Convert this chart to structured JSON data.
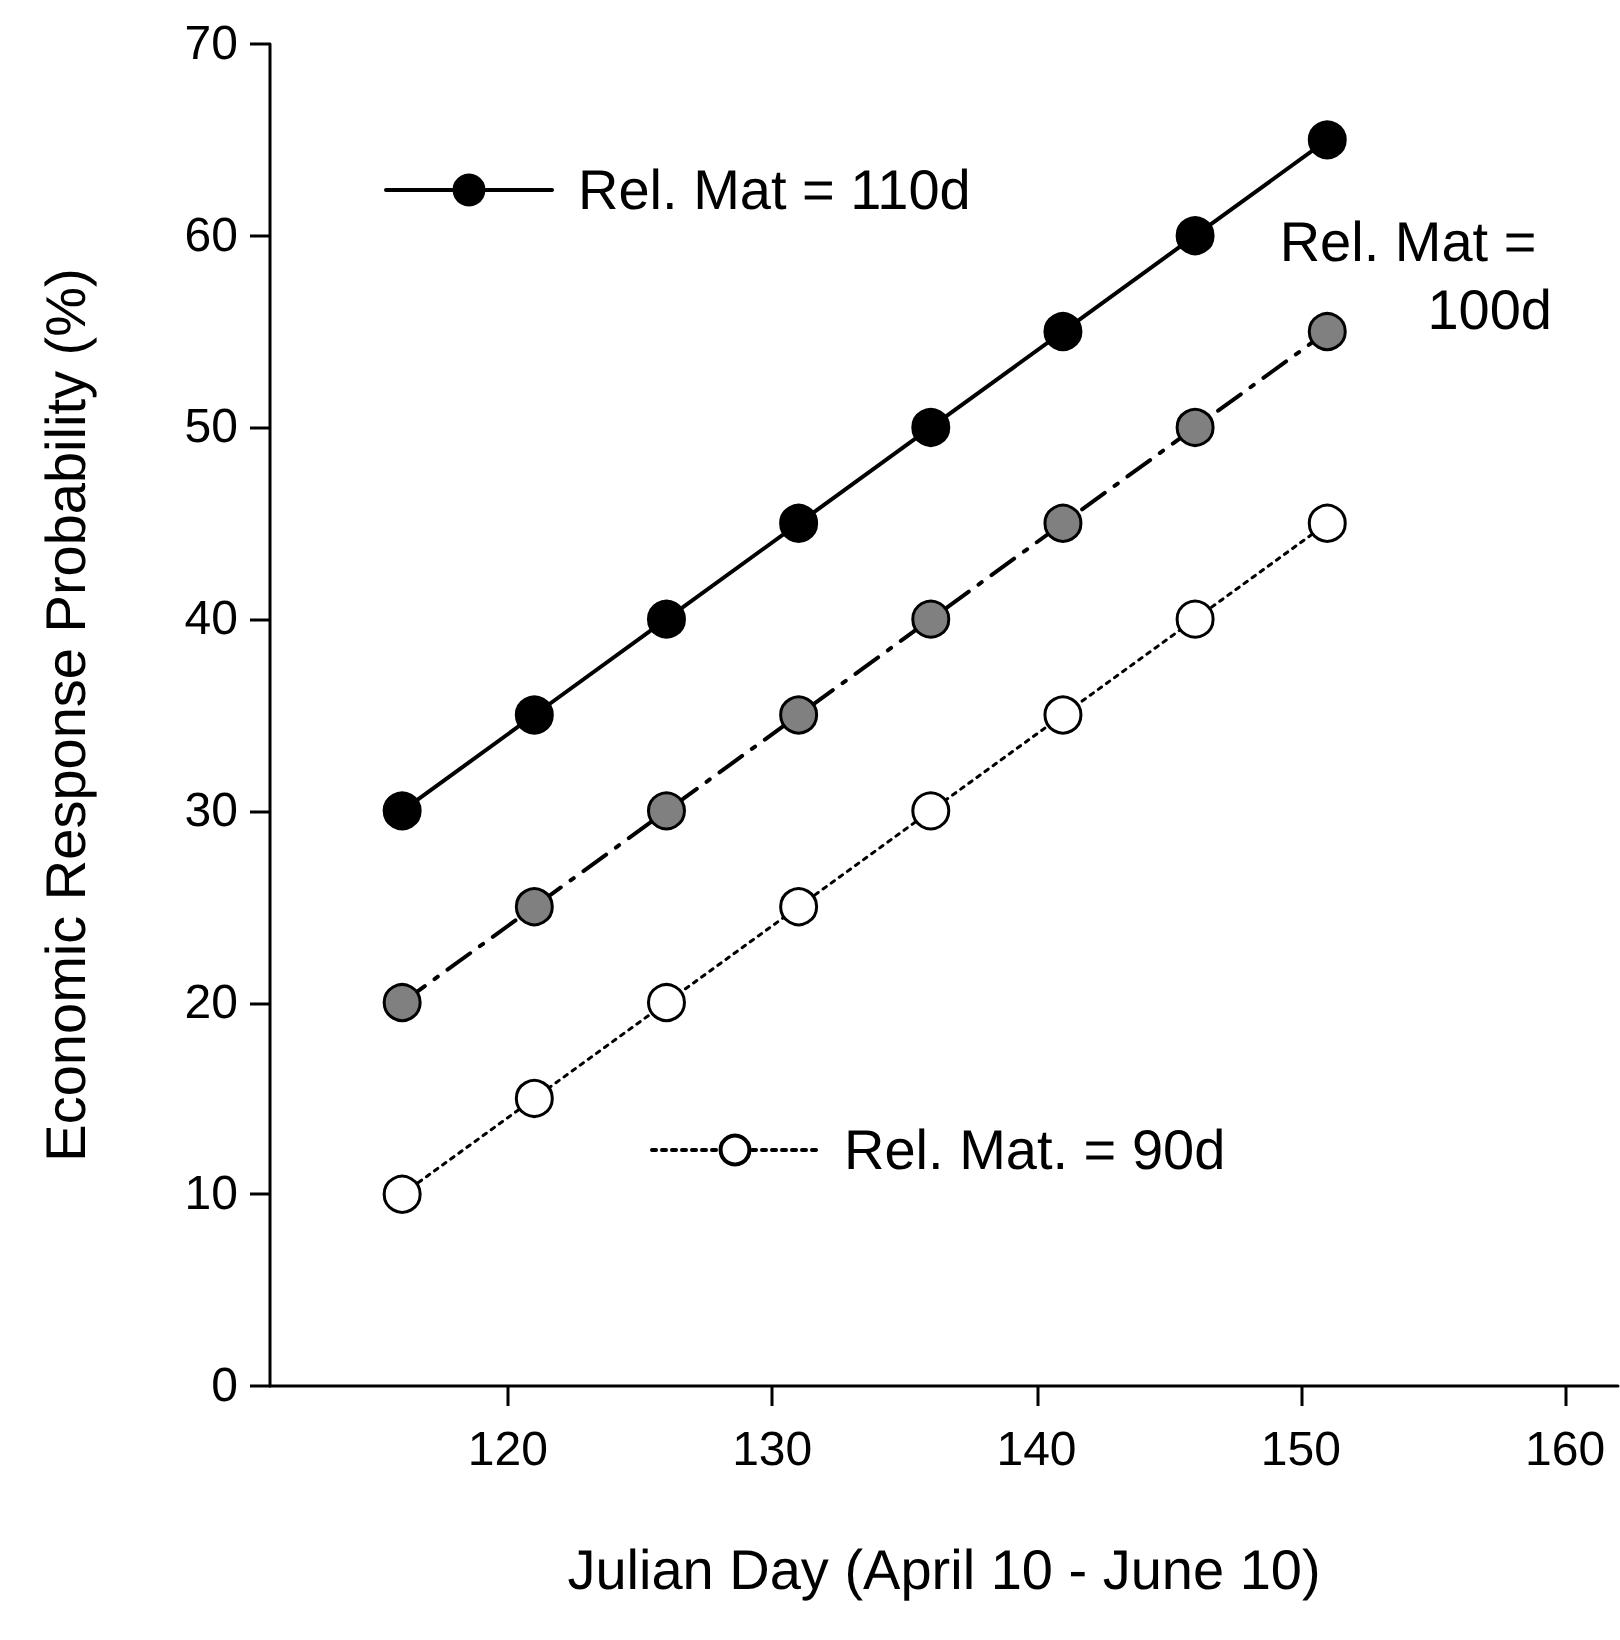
{
  "chart_data": {
    "type": "line",
    "xlabel": "Julian Day (April 10 - June 10)",
    "ylabel": "Economic Response Probability (%)",
    "x": [
      116,
      121,
      126,
      131,
      136,
      141,
      146,
      151
    ],
    "series": [
      {
        "name": "Rel. Mat = 110d",
        "color": "#000000",
        "line_style": "solid",
        "values": [
          30,
          35,
          40,
          45,
          50,
          55,
          60,
          65
        ]
      },
      {
        "name": "Rel. Mat = 100d",
        "color": "#808080",
        "line_style": "dashed",
        "values": [
          20,
          25,
          30,
          35,
          40,
          45,
          50,
          55
        ]
      },
      {
        "name": "Rel. Mat. = 90d",
        "color": "#ffffff",
        "line_style": "dotted",
        "values": [
          10,
          15,
          20,
          25,
          30,
          35,
          40,
          45
        ]
      }
    ],
    "xlim": [
      111,
      162
    ],
    "xticks": [
      120,
      130,
      140,
      150,
      160
    ],
    "ylim": [
      0,
      70
    ],
    "yticks": [
      0,
      10,
      20,
      30,
      40,
      50,
      60,
      70
    ],
    "marker": "circle",
    "grid": false,
    "legend": "top left"
  }
}
